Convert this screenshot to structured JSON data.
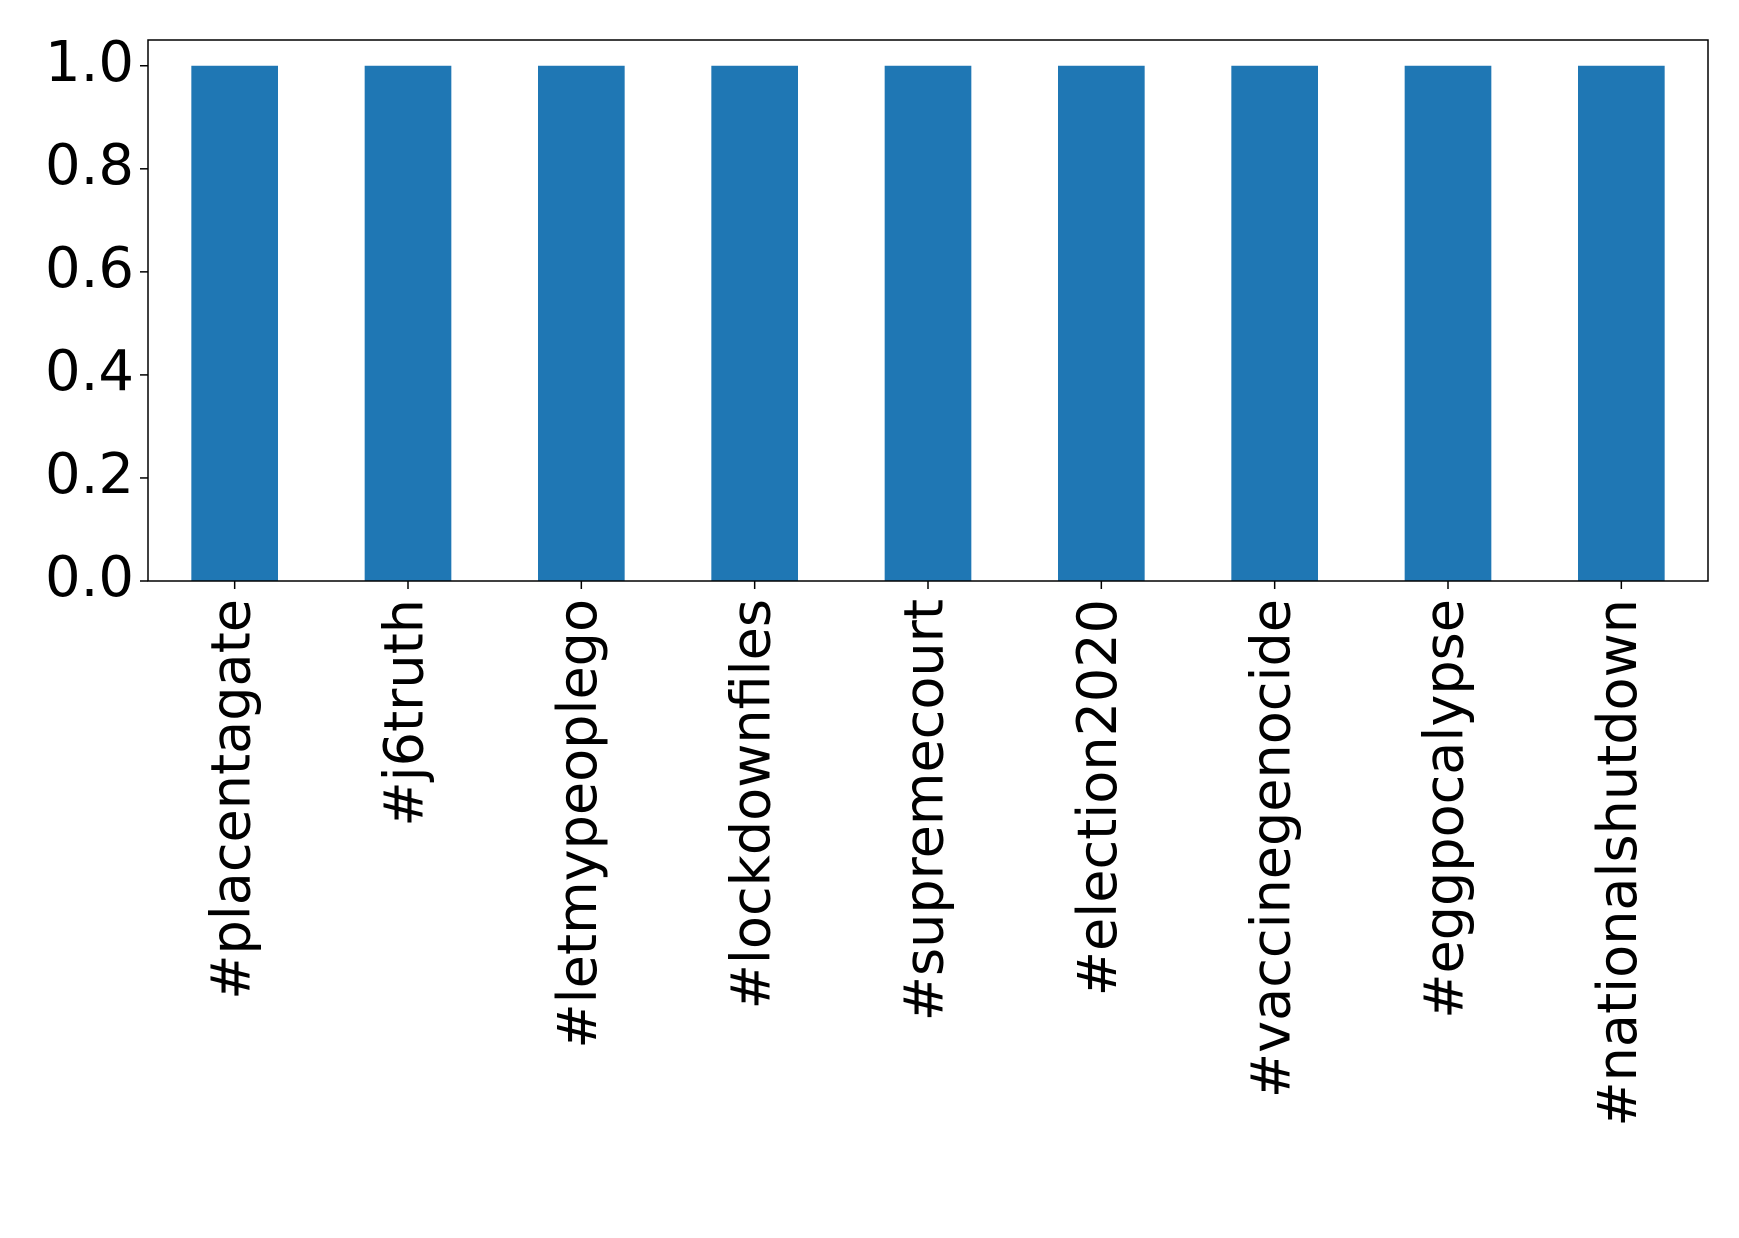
{
  "chart_data": {
    "type": "bar",
    "categories": [
      "#placentagate",
      "#j6truth",
      "#letmypeoplego",
      "#lockdownfiles",
      "#supremecourt",
      "#election2020",
      "#vaccinegenocide",
      "#eggpocalypse",
      "#nationalshutdown"
    ],
    "values": [
      1,
      1,
      1,
      1,
      1,
      1,
      1,
      1,
      1
    ],
    "color": "#1f77b4",
    "ylim": [
      0,
      1.05
    ],
    "yticks": [
      {
        "value": 0,
        "label": "0.0"
      },
      0.2,
      0.4,
      0.6,
      0.8,
      {
        "value": 1,
        "label": "1.0"
      }
    ],
    "grid": false
  }
}
